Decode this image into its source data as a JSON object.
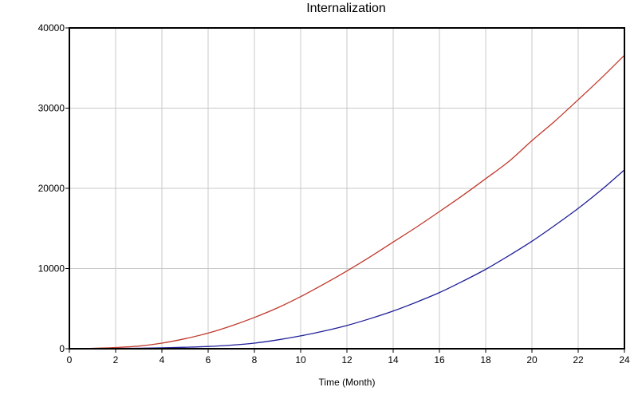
{
  "chart_data": {
    "type": "line",
    "title": "Internalization",
    "xlabel": "Time (Month)",
    "ylabel": "",
    "xlim": [
      0,
      24
    ],
    "ylim": [
      0,
      40000
    ],
    "xticks": [
      0,
      2,
      4,
      6,
      8,
      10,
      12,
      14,
      16,
      18,
      20,
      22,
      24
    ],
    "yticks": [
      0,
      10000,
      20000,
      30000,
      40000
    ],
    "grid": true,
    "legend": "none",
    "x": [
      0,
      1,
      2,
      3,
      4,
      5,
      6,
      7,
      8,
      9,
      10,
      11,
      12,
      13,
      14,
      15,
      16,
      17,
      18,
      19,
      20,
      21,
      22,
      23,
      24
    ],
    "series": [
      {
        "color": "#c0392b",
        "values": [
          0,
          50,
          150,
          330,
          700,
          1250,
          1950,
          2850,
          3900,
          5100,
          6500,
          8050,
          9700,
          11450,
          13300,
          15150,
          17100,
          19100,
          21200,
          23350,
          25950,
          28400,
          31050,
          33750,
          36600
        ]
      },
      {
        "color": "#1f1f99",
        "values": [
          0,
          10,
          30,
          60,
          110,
          180,
          280,
          450,
          700,
          1100,
          1600,
          2200,
          2900,
          3750,
          4700,
          5800,
          7000,
          8400,
          9900,
          11600,
          13400,
          15400,
          17500,
          19800,
          22300
        ]
      }
    ]
  }
}
